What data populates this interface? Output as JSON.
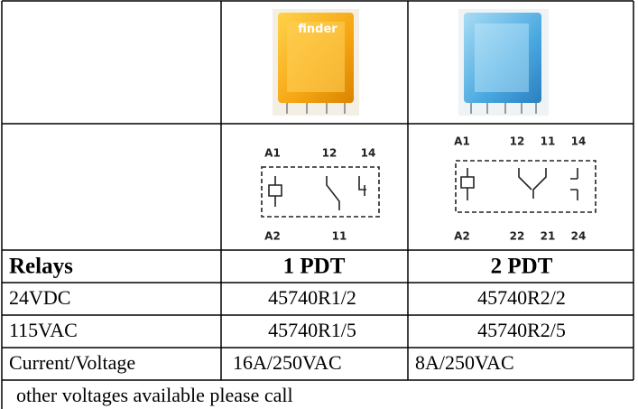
{
  "relay_logo": "finder",
  "diagrams": [
    {
      "top": [
        "A1",
        "12",
        "14"
      ],
      "bottom": [
        "A2",
        "11"
      ]
    },
    {
      "top": [
        "A1",
        "12",
        "11",
        "14"
      ],
      "bottom": [
        "A2",
        "22",
        "21",
        "24"
      ]
    }
  ],
  "table": {
    "header": [
      "Relays",
      "1 PDT",
      "2 PDT"
    ],
    "rows": [
      [
        "24VDC",
        "45740R1/2",
        "45740R2/2"
      ],
      [
        "115VAC",
        "45740R1/5",
        "45740R2/5"
      ],
      [
        "Current/Voltage",
        "16A/250VAC",
        "8A/250VAC"
      ]
    ],
    "note": "other voltages available please call"
  }
}
